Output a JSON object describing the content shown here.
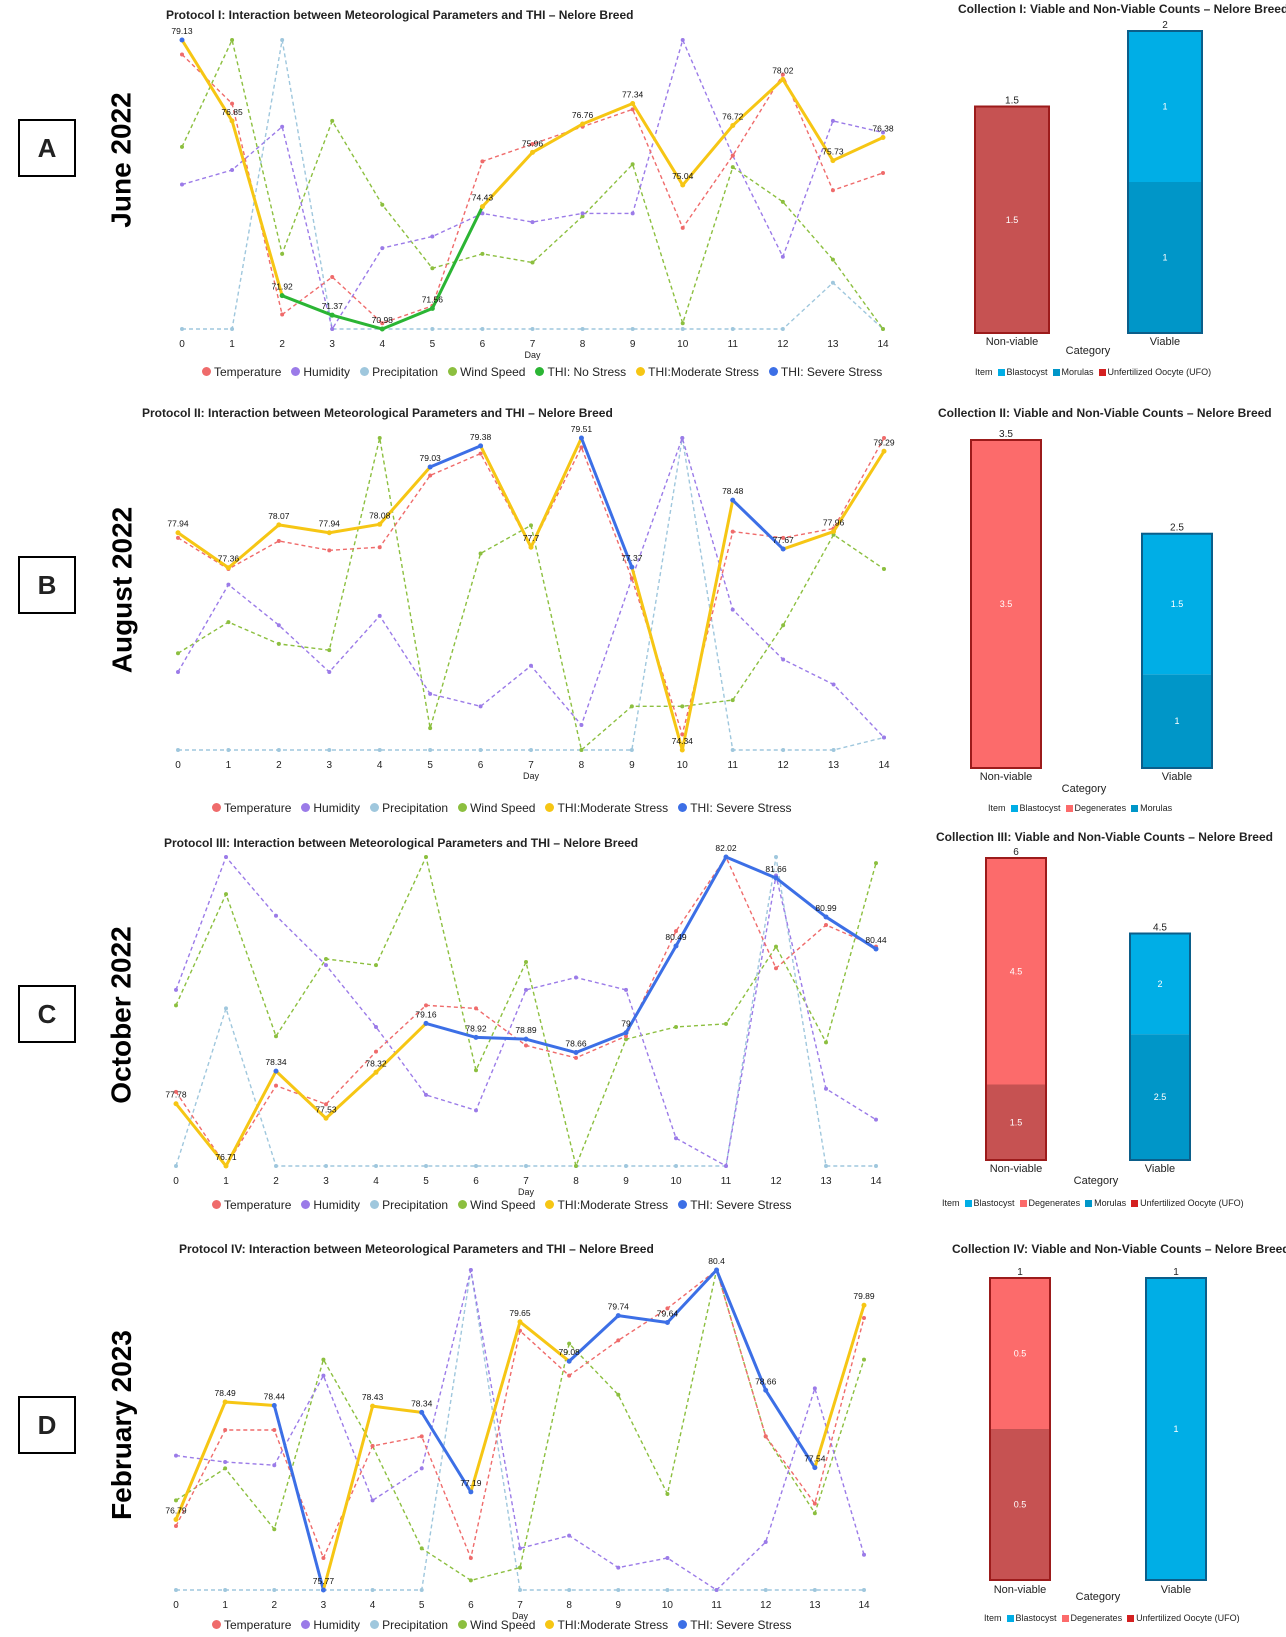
{
  "colors": {
    "temperature": "#ef6b6b",
    "humidity": "#9b7be8",
    "precipitation": "#9fc7dd",
    "wind": "#8cbf3f",
    "no_stress": "#2bb534",
    "moderate": "#f6c614",
    "severe": "#3c6fe6",
    "nonviable_dark": "#c65252",
    "nonviable_light": "#fc6b6b",
    "viable_light": "#00aee6",
    "viable_dark": "#0096c8"
  },
  "chart_data": [
    {
      "type": "line",
      "letter": "A",
      "month": "June 2022",
      "title": "Protocol I: Interaction between Meteorological Parameters and THI – Nelore Breed",
      "xlabel": "Day",
      "x": [
        0,
        1,
        2,
        3,
        4,
        5,
        6,
        7,
        8,
        9,
        10,
        11,
        12,
        13,
        14
      ],
      "ylim": [
        70.98,
        79.13
      ],
      "thi": [
        79.13,
        76.85,
        71.92,
        71.37,
        70.98,
        71.56,
        74.43,
        75.96,
        76.76,
        77.34,
        75.04,
        76.72,
        78.02,
        75.73,
        76.38
      ],
      "thi_labels": [
        "79.13",
        "76.85",
        "71.92",
        "71.37",
        "70.98",
        "71.56",
        "74.43",
        "75.96",
        "76.76",
        "77.34",
        "75.04",
        "76.72",
        "78.02",
        "75.73",
        "76.38"
      ],
      "thi_class": [
        "severe",
        "moderate",
        "no",
        "no",
        "no",
        "no",
        "moderate",
        "moderate",
        "moderate",
        "moderate",
        "moderate",
        "moderate",
        "moderate",
        "moderate",
        "moderate"
      ],
      "temperature": [
        0.05,
        0.22,
        0.95,
        0.82,
        0.98,
        0.92,
        0.42,
        0.36,
        0.3,
        0.24,
        0.65,
        0.4,
        0.12,
        0.52,
        0.46
      ],
      "humidity": [
        0.5,
        0.45,
        0.3,
        1.0,
        0.72,
        0.68,
        0.6,
        0.63,
        0.6,
        0.6,
        0.0,
        0.4,
        0.75,
        0.28,
        0.32
      ],
      "precipitation": [
        1.0,
        1.0,
        0.0,
        1.0,
        1.0,
        1.0,
        1.0,
        1.0,
        1.0,
        1.0,
        1.0,
        1.0,
        1.0,
        0.84,
        1.0
      ],
      "wind": [
        0.37,
        0.0,
        0.74,
        0.28,
        0.57,
        0.79,
        0.74,
        0.77,
        0.61,
        0.43,
        0.98,
        0.44,
        0.56,
        0.76,
        1.0
      ],
      "legend": [
        "Temperature",
        "Humidity",
        "Precipitation",
        "Wind Speed",
        "THI: No Stress",
        "THI:Moderate Stress",
        "THI: Severe Stress"
      ],
      "legend_keys": [
        "temperature",
        "humidity",
        "precipitation",
        "wind",
        "no_stress",
        "moderate",
        "severe"
      ]
    },
    {
      "type": "line",
      "letter": "B",
      "month": "August 2022",
      "title": "Protocol II: Interaction between Meteorological Parameters and THI – Nelore Breed",
      "xlabel": "Day",
      "x": [
        0,
        1,
        2,
        3,
        4,
        5,
        6,
        7,
        8,
        9,
        10,
        11,
        12,
        13,
        14
      ],
      "ylim": [
        74.34,
        79.51
      ],
      "thi": [
        77.94,
        77.36,
        78.07,
        77.94,
        78.08,
        79.03,
        79.38,
        77.7,
        79.51,
        77.37,
        74.34,
        78.48,
        77.67,
        77.96,
        79.29
      ],
      "thi_labels": [
        "77.94",
        "77.36",
        "78.07",
        "77.94",
        "78.08",
        "79.03",
        "79.38",
        "77.7",
        "79.51",
        "77.37",
        "74.34",
        "78.48",
        "77.67",
        "77.96",
        "79.29"
      ],
      "thi_class": [
        "moderate",
        "moderate",
        "moderate",
        "moderate",
        "moderate",
        "severe",
        "severe",
        "moderate",
        "severe",
        "severe",
        "moderate",
        "severe",
        "severe",
        "moderate",
        "moderate"
      ],
      "temperature": [
        0.32,
        0.42,
        0.33,
        0.36,
        0.35,
        0.12,
        0.05,
        0.35,
        0.03,
        0.45,
        0.95,
        0.3,
        0.32,
        0.29,
        0.0
      ],
      "humidity": [
        0.75,
        0.47,
        0.6,
        0.75,
        0.57,
        0.82,
        0.86,
        0.73,
        0.92,
        0.45,
        0.0,
        0.55,
        0.71,
        0.79,
        0.96
      ],
      "precipitation": [
        1.0,
        1.0,
        1.0,
        1.0,
        1.0,
        1.0,
        1.0,
        1.0,
        1.0,
        1.0,
        0.0,
        1.0,
        1.0,
        1.0,
        0.96
      ],
      "wind": [
        0.69,
        0.59,
        0.66,
        0.68,
        0.0,
        0.93,
        0.37,
        0.28,
        1.0,
        0.86,
        0.86,
        0.84,
        0.6,
        0.31,
        0.42
      ],
      "legend": [
        "Temperature",
        "Humidity",
        "Precipitation",
        "Wind Speed",
        "THI:Moderate Stress",
        "THI: Severe Stress"
      ],
      "legend_keys": [
        "temperature",
        "humidity",
        "precipitation",
        "wind",
        "moderate",
        "severe"
      ]
    },
    {
      "type": "line",
      "letter": "C",
      "month": "October 2022",
      "title": "Protocol III: Interaction between Meteorological Parameters and THI – Nelore Breed",
      "xlabel": "Day",
      "x": [
        0,
        1,
        2,
        3,
        4,
        5,
        6,
        7,
        8,
        9,
        10,
        11,
        12,
        13,
        14
      ],
      "ylim": [
        76.71,
        82.02
      ],
      "thi": [
        77.78,
        76.71,
        78.34,
        77.53,
        78.32,
        79.16,
        78.92,
        78.89,
        78.66,
        79.0,
        80.49,
        82.02,
        81.66,
        80.99,
        80.44
      ],
      "thi_labels": [
        "77.78",
        "76.71",
        "78.34",
        "77.53",
        "78.32",
        "79.16",
        "78.92",
        "78.89",
        "78.66",
        "79",
        "80.49",
        "82.02",
        "81.66",
        "80.99",
        "80.44"
      ],
      "thi_class": [
        "moderate",
        "moderate",
        "severe",
        "moderate",
        "moderate",
        "severe",
        "severe",
        "severe",
        "severe",
        "severe",
        "severe",
        "severe",
        "severe",
        "severe",
        "severe"
      ],
      "temperature": [
        0.76,
        1.0,
        0.74,
        0.8,
        0.63,
        0.48,
        0.49,
        0.61,
        0.65,
        0.58,
        0.24,
        0.0,
        0.36,
        0.22,
        0.29
      ],
      "humidity": [
        0.43,
        0.0,
        0.19,
        0.35,
        0.55,
        0.77,
        0.82,
        0.43,
        0.39,
        0.43,
        0.91,
        1.0,
        0.06,
        0.75,
        0.85
      ],
      "precipitation": [
        1.0,
        0.49,
        1.0,
        1.0,
        1.0,
        1.0,
        1.0,
        1.0,
        1.0,
        1.0,
        1.0,
        1.0,
        0.0,
        1.0,
        1.0
      ],
      "wind": [
        0.48,
        0.12,
        0.58,
        0.33,
        0.35,
        0.0,
        0.69,
        0.34,
        1.0,
        0.59,
        0.55,
        0.54,
        0.29,
        0.6,
        0.02
      ],
      "legend": [
        "Temperature",
        "Humidity",
        "Precipitation",
        "Wind Speed",
        "THI:Moderate Stress",
        "THI: Severe Stress"
      ],
      "legend_keys": [
        "temperature",
        "humidity",
        "precipitation",
        "wind",
        "moderate",
        "severe"
      ]
    },
    {
      "type": "line",
      "letter": "D",
      "month": "February 2023",
      "title": "Protocol IV: Interaction between Meteorological Parameters and THI – Nelore Breed",
      "xlabel": "Day",
      "x": [
        0,
        1,
        2,
        3,
        4,
        5,
        6,
        7,
        8,
        9,
        10,
        11,
        12,
        13,
        14
      ],
      "ylim": [
        75.77,
        80.4
      ],
      "thi": [
        76.79,
        78.49,
        78.44,
        75.77,
        78.43,
        78.34,
        77.19,
        79.65,
        79.08,
        79.74,
        79.64,
        80.4,
        78.66,
        77.54,
        79.89
      ],
      "thi_labels": [
        "76.79",
        "78.49",
        "78.44",
        "75.77",
        "78.43",
        "78.34",
        "77.19",
        "79.65",
        "79.08",
        "79.74",
        "79.64",
        "80.4",
        "78.66",
        "77.54",
        "79.89"
      ],
      "thi_class": [
        "moderate",
        "moderate",
        "severe",
        "severe",
        "moderate",
        "severe",
        "severe",
        "moderate",
        "severe",
        "severe",
        "severe",
        "severe",
        "severe",
        "severe",
        "moderate"
      ],
      "temperature": [
        0.8,
        0.5,
        0.5,
        0.9,
        0.55,
        0.52,
        0.9,
        0.19,
        0.33,
        0.22,
        0.12,
        0.0,
        0.52,
        0.73,
        0.15
      ],
      "humidity": [
        0.58,
        0.6,
        0.61,
        0.33,
        0.72,
        0.62,
        0.0,
        0.87,
        0.83,
        0.93,
        0.9,
        1.0,
        0.85,
        0.37,
        0.89
      ],
      "precipitation": [
        1.0,
        1.0,
        1.0,
        1.0,
        1.0,
        1.0,
        0.0,
        1.0,
        1.0,
        1.0,
        1.0,
        1.0,
        1.0,
        1.0,
        1.0
      ],
      "wind": [
        0.72,
        0.62,
        0.81,
        0.28,
        0.55,
        0.87,
        0.97,
        0.93,
        0.23,
        0.39,
        0.7,
        0.0,
        0.52,
        0.76,
        0.28
      ],
      "legend": [
        "Temperature",
        "Humidity",
        "Precipitation",
        "Wind Speed",
        "THI:Moderate Stress",
        "THI: Severe Stress"
      ],
      "legend_keys": [
        "temperature",
        "humidity",
        "precipitation",
        "wind",
        "moderate",
        "severe"
      ]
    },
    {
      "type": "bar",
      "title": "Collection I: Viable and Non-Viable Counts – Nelore Breed",
      "xlabel": "Category",
      "categories": [
        "Non-viable",
        "Viable"
      ],
      "ymax": 2,
      "totals": [
        "1.5",
        "2"
      ],
      "stacks": [
        [
          {
            "value": 1.5,
            "label": "1.5",
            "color": "nonviable_dark"
          }
        ],
        [
          {
            "value": 1,
            "label": "1",
            "color": "viable_dark"
          },
          {
            "value": 1,
            "label": "1",
            "color": "viable_light"
          }
        ]
      ],
      "legend_title": "Item",
      "legend": [
        {
          "label": "Blastocyst",
          "color": "viable_light"
        },
        {
          "label": "Morulas",
          "color": "viable_dark"
        },
        {
          "label": "Unfertilized Oocyte (UFO)",
          "color": "#d42020"
        }
      ]
    },
    {
      "type": "bar",
      "title": "Collection II: Viable and Non-Viable Counts – Nelore Breed",
      "xlabel": "Category",
      "categories": [
        "Non-viable",
        "Viable"
      ],
      "ymax": 3.5,
      "totals": [
        "3.5",
        "2.5"
      ],
      "stacks": [
        [
          {
            "value": 3.5,
            "label": "3.5",
            "color": "nonviable_light"
          }
        ],
        [
          {
            "value": 1,
            "label": "1",
            "color": "viable_dark"
          },
          {
            "value": 1.5,
            "label": "1.5",
            "color": "viable_light"
          }
        ]
      ],
      "legend_title": "Item",
      "legend": [
        {
          "label": "Blastocyst",
          "color": "viable_light"
        },
        {
          "label": "Degenerates",
          "color": "nonviable_light"
        },
        {
          "label": "Morulas",
          "color": "viable_dark"
        }
      ]
    },
    {
      "type": "bar",
      "title": "Collection III: Viable and Non-Viable Counts – Nelore Breed",
      "xlabel": "Category",
      "categories": [
        "Non-viable",
        "Viable"
      ],
      "ymax": 6,
      "totals": [
        "6",
        "4.5"
      ],
      "stacks": [
        [
          {
            "value": 1.5,
            "label": "1.5",
            "color": "nonviable_dark"
          },
          {
            "value": 4.5,
            "label": "4.5",
            "color": "nonviable_light"
          }
        ],
        [
          {
            "value": 2.5,
            "label": "2.5",
            "color": "viable_dark"
          },
          {
            "value": 2,
            "label": "2",
            "color": "viable_light"
          }
        ]
      ],
      "legend_title": "Item",
      "legend": [
        {
          "label": "Blastocyst",
          "color": "viable_light"
        },
        {
          "label": "Degenerates",
          "color": "nonviable_light"
        },
        {
          "label": "Morulas",
          "color": "viable_dark"
        },
        {
          "label": "Unfertilized Oocyte (UFO)",
          "color": "#d42020"
        }
      ]
    },
    {
      "type": "bar",
      "title": "Collection IV: Viable and Non-Viable Counts – Nelore Breed",
      "xlabel": "Category",
      "categories": [
        "Non-viable",
        "Viable"
      ],
      "ymax": 1,
      "totals": [
        "1",
        "1"
      ],
      "stacks": [
        [
          {
            "value": 0.5,
            "label": "0.5",
            "color": "nonviable_dark"
          },
          {
            "value": 0.5,
            "label": "0.5",
            "color": "nonviable_light"
          }
        ],
        [
          {
            "value": 1,
            "label": "1",
            "color": "viable_light"
          }
        ]
      ],
      "legend_title": "Item",
      "legend": [
        {
          "label": "Blastocyst",
          "color": "viable_light"
        },
        {
          "label": "Degenerates",
          "color": "nonviable_light"
        },
        {
          "label": "Unfertilized Oocyte (UFO)",
          "color": "#d42020"
        }
      ]
    }
  ]
}
